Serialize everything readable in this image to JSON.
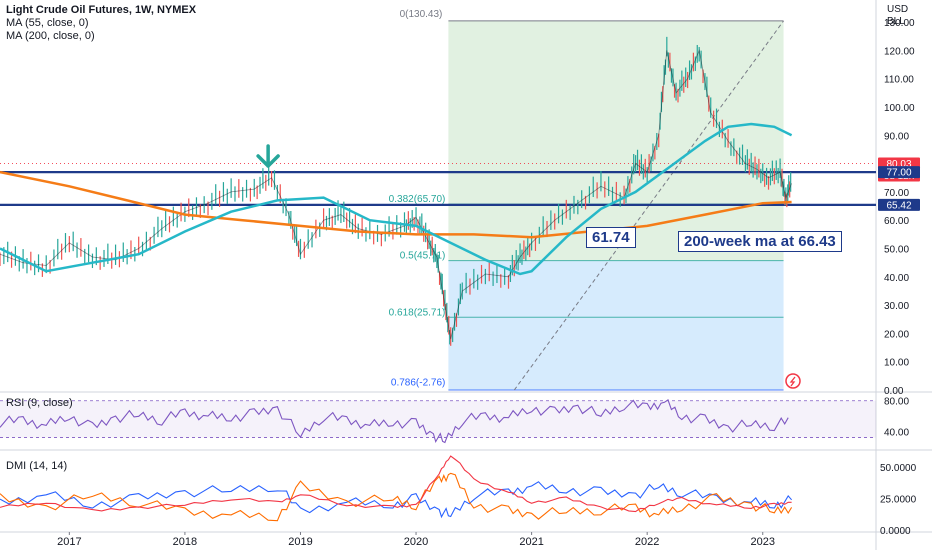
{
  "header": {
    "symbol": "Light Crude Oil Futures, 1W, NYMEX",
    "ma55_label": "MA (55, close, 0)",
    "ma200_label": "MA (200, close, 0)",
    "currency_top": "USD",
    "currency_unit": "BLL"
  },
  "chart_data": {
    "type": "line",
    "price_axis": {
      "ylim": [
        0,
        135
      ],
      "ticks": [
        "0.00",
        "10.00",
        "20.00",
        "30.00",
        "40.00",
        "50.00",
        "60.00",
        "70.00",
        "90.00",
        "100.00",
        "110.00",
        "120.00",
        "130.00"
      ]
    },
    "time_axis": {
      "labels": [
        "2017",
        "2018",
        "2019",
        "2020",
        "2021",
        "2022",
        "2023"
      ]
    },
    "price_series": {
      "name": "",
      "x": [
        2016.4,
        2016.6,
        2016.8,
        2017.0,
        2017.2,
        2017.4,
        2017.6,
        2017.8,
        2018.0,
        2018.2,
        2018.4,
        2018.6,
        2018.75,
        2018.9,
        2019.0,
        2019.2,
        2019.35,
        2019.5,
        2019.7,
        2019.9,
        2020.0,
        2020.1,
        2020.18,
        2020.25,
        2020.3,
        2020.4,
        2020.6,
        2020.8,
        2020.9,
        2021.0,
        2021.2,
        2021.4,
        2021.6,
        2021.8,
        2021.9,
        2022.0,
        2022.1,
        2022.17,
        2022.25,
        2022.35,
        2022.45,
        2022.55,
        2022.7,
        2022.85,
        2022.95,
        2023.05,
        2023.15,
        2023.2,
        2023.25
      ],
      "y": [
        48,
        45,
        44,
        52,
        47,
        46,
        50,
        57,
        63,
        66,
        70,
        71,
        75,
        62,
        48,
        60,
        62,
        57,
        55,
        58,
        61,
        53,
        47,
        30,
        18,
        35,
        41,
        40,
        47,
        52,
        60,
        66,
        72,
        68,
        80,
        77,
        90,
        120,
        105,
        110,
        120,
        98,
        88,
        80,
        78,
        75,
        77,
        68,
        73
      ]
    },
    "ma55": {
      "x": [
        2016.4,
        2016.8,
        2017.2,
        2017.6,
        2018.0,
        2018.4,
        2018.8,
        2019.2,
        2019.6,
        2020.0,
        2020.3,
        2020.6,
        2020.9,
        2021.0,
        2021.3,
        2021.6,
        2021.9,
        2022.2,
        2022.5,
        2022.7,
        2022.9,
        2023.1,
        2023.25
      ],
      "y": [
        50,
        42,
        45,
        48,
        56,
        63,
        67,
        68,
        60,
        58,
        52,
        46,
        41,
        42,
        54,
        64,
        70,
        79,
        88,
        93,
        94,
        93,
        90
      ]
    },
    "ma200": {
      "x": [
        2016.4,
        2017.0,
        2017.5,
        2018.0,
        2018.5,
        2019.0,
        2019.5,
        2020.0,
        2020.5,
        2021.0,
        2021.5,
        2022.0,
        2022.5,
        2023.0,
        2023.25
      ],
      "y": [
        77,
        72,
        67,
        62,
        60,
        58,
        56,
        55,
        55,
        54,
        56,
        58,
        62,
        66,
        66.43
      ]
    },
    "horizontal_levels": [
      77.0,
      65.42
    ],
    "fibonacci": {
      "top_label": "0(130.43)",
      "levels": [
        {
          "label": "0.382(65.70)",
          "value": 65.7
        },
        {
          "label": "0.5(45.71)",
          "value": 45.71
        },
        {
          "label": "0.618(25.71)",
          "value": 25.71
        },
        {
          "label": "0.786(-2.76)",
          "value": -2.76
        }
      ]
    },
    "price_tags": [
      {
        "text": "80.03",
        "color": "#f23645"
      },
      {
        "text": "3d 12h",
        "color": "#f23645"
      },
      {
        "text": "77.00",
        "color": "#1e3a8a"
      },
      {
        "text": "65.42",
        "color": "#1e3a8a"
      }
    ],
    "annotations": {
      "low_label": "61.74",
      "ma_label": "200-week ma at 66.43"
    },
    "rsi": {
      "label": "RSI (9, close)",
      "ylim": [
        20,
        90
      ],
      "ticks": [
        "80.00",
        "40.00"
      ],
      "x": [
        2016.4,
        2016.6,
        2016.8,
        2017.0,
        2017.2,
        2017.4,
        2017.6,
        2017.8,
        2018.0,
        2018.2,
        2018.4,
        2018.6,
        2018.8,
        2019.0,
        2019.2,
        2019.4,
        2019.6,
        2019.8,
        2020.0,
        2020.15,
        2020.25,
        2020.4,
        2020.6,
        2020.8,
        2021.0,
        2021.2,
        2021.4,
        2021.6,
        2021.8,
        2022.0,
        2022.15,
        2022.3,
        2022.5,
        2022.7,
        2022.9,
        2023.1,
        2023.25
      ],
      "y": [
        52,
        55,
        48,
        60,
        45,
        58,
        62,
        55,
        65,
        60,
        58,
        63,
        70,
        35,
        60,
        55,
        48,
        52,
        50,
        35,
        28,
        55,
        60,
        58,
        70,
        65,
        72,
        62,
        75,
        72,
        78,
        60,
        55,
        45,
        50,
        48,
        55
      ]
    },
    "dmi": {
      "label": "DMI (14, 14)",
      "ylim": [
        0,
        62
      ],
      "ticks": [
        "50.0000",
        "25.0000",
        "0.0000"
      ],
      "x": [
        2016.4,
        2016.8,
        2017.2,
        2017.6,
        2018.0,
        2018.4,
        2018.8,
        2019.0,
        2019.4,
        2019.8,
        2020.0,
        2020.2,
        2020.3,
        2020.5,
        2020.8,
        2021.0,
        2021.3,
        2021.6,
        2021.9,
        2022.1,
        2022.3,
        2022.6,
        2022.9,
        2023.1,
        2023.25
      ],
      "plus_di": [
        22,
        28,
        20,
        25,
        30,
        32,
        35,
        15,
        22,
        20,
        25,
        15,
        12,
        28,
        30,
        35,
        32,
        30,
        28,
        35,
        30,
        25,
        22,
        20,
        24
      ],
      "minus_di": [
        25,
        18,
        28,
        22,
        15,
        12,
        10,
        35,
        22,
        25,
        20,
        40,
        45,
        20,
        15,
        12,
        15,
        16,
        18,
        12,
        18,
        25,
        20,
        15,
        18
      ],
      "adx": [
        18,
        22,
        15,
        18,
        20,
        25,
        22,
        28,
        20,
        18,
        20,
        45,
        60,
        40,
        30,
        22,
        25,
        18,
        15,
        22,
        25,
        20,
        18,
        20,
        22
      ]
    },
    "colors": {
      "price": "#131722",
      "ma55": "#26b8c8",
      "ma200": "#f57c17",
      "level_line": "#1e3a8a",
      "fib_top": "#c8e6c9",
      "fib_bottom": "#bbdefb",
      "arrow": "#26a69a",
      "rsi_line": "#7e57c2",
      "plus_di": "#2962ff",
      "minus_di": "#ff6d00",
      "adx": "#f23645"
    },
    "icons": [
      "down-arrow-icon",
      "lightning-icon"
    ]
  }
}
